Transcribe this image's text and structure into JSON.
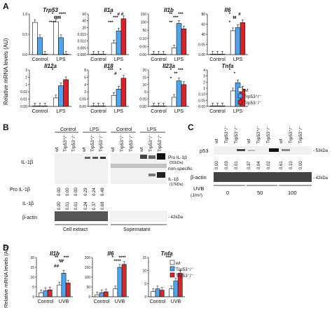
{
  "panels": {
    "A": "A",
    "B": "B",
    "C": "C",
    "D": "D"
  },
  "colors": {
    "wt": "#ffffff",
    "het": "#4da6ee",
    "ko": "#d8232a",
    "err": "#222222"
  },
  "legend_A": {
    "items": [
      {
        "label": "wt",
        "color": "#ffffff"
      },
      {
        "label": "Trp53⁺/⁻",
        "color": "#4da6ee"
      },
      {
        "label": "Trp53⁻/⁻",
        "color": "#d8232a"
      }
    ]
  },
  "legend_D": {
    "items": [
      {
        "label": "wt",
        "color": "#ffffff"
      },
      {
        "label": "Trp53⁺/⁻",
        "color": "#4da6ee"
      },
      {
        "label": "Trp53⁻/⁻",
        "color": "#d8232a"
      }
    ]
  },
  "ylabel_A": "Relative mRNA levels (AU)",
  "ylabel_D": "Relative mRNA levels (AU)",
  "panelB": {
    "groups": [
      "Control",
      "LPS",
      "Control",
      "LPS"
    ],
    "lanes": [
      "wt",
      "Trp53⁺/⁻",
      "Trp53⁻/⁻",
      "wt",
      "Trp53⁺/⁻",
      "Trp53⁻/⁻",
      "wt",
      "Trp53⁺/⁻",
      "Trp53⁻/⁻",
      "wt",
      "Trp53⁺/⁻",
      "Trp53⁻/⁻"
    ],
    "left_label": "IL-1β",
    "right_labels": [
      "Pro IL-1β",
      "(31kDa)",
      "non-specific",
      "IL-1β",
      "(17kDa)"
    ],
    "pro_label": "Pro IL-1β",
    "il_label": "IL-1β",
    "pro_values": [
      "0.00",
      "0.00",
      "0.00",
      "0.29",
      "0.24",
      "0.48"
    ],
    "il_values": [
      "0.00",
      "0.01",
      "0.01",
      "0.24",
      "0.37",
      "0.68"
    ],
    "actin_label": "β-actin",
    "actin_kda": "- 42kDa",
    "bottom": [
      "Cell extract",
      "Supernatant"
    ]
  },
  "panelC": {
    "lanes": [
      "wt",
      "Trp53⁺/⁻",
      "Trp53⁻/⁻",
      "wt",
      "Trp53⁺/⁻",
      "Trp53⁻/⁻",
      "wt",
      "Trp53⁺/⁻",
      "Trp53⁻/⁻"
    ],
    "p53_label": "p53",
    "kda_p53": "- 53kDa",
    "values": [
      "0.00",
      "0.03",
      "0.01",
      "0.37",
      "0.04",
      "0.02",
      "0.61",
      "0.10",
      "0.00"
    ],
    "actin_label": "β-actin",
    "kda_actin": "- 42kDa",
    "uvb_label": "UVB",
    "uvb_unit": "(J/m²)",
    "doses": [
      "0",
      "50",
      "100"
    ]
  },
  "chart_data": [
    {
      "type": "bar",
      "panel": "A",
      "title": "Trp53",
      "categories": [
        "Control",
        "LPS"
      ],
      "ylim": [
        0,
        1.2
      ],
      "ticks": [
        "0.0",
        "0.5",
        "1.0"
      ],
      "series": [
        {
          "name": "wt",
          "values": [
            0.95,
            0.97
          ]
        },
        {
          "name": "Trp53⁺/⁻",
          "values": [
            0.5,
            0.5
          ]
        },
        {
          "name": "Trp53⁻/⁻",
          "values": [
            0.01,
            0.01
          ]
        }
      ],
      "annotations": [
        "*",
        "****",
        "****",
        "****",
        "****"
      ]
    },
    {
      "type": "bar",
      "panel": "A",
      "title": "Il1a",
      "categories": [
        "Control",
        "LPS"
      ],
      "ylim": [
        0,
        60
      ],
      "ticks": [
        "0.000",
        "0.005",
        "0.010",
        "0.015",
        "20",
        "40",
        "60"
      ],
      "series": [
        {
          "name": "wt",
          "values": [
            0.002,
            17
          ]
        },
        {
          "name": "Trp53⁺/⁻",
          "values": [
            0.004,
            35
          ]
        },
        {
          "name": "Trp53⁻/⁻",
          "values": [
            0.008,
            53
          ]
        }
      ],
      "annotations": [
        "*",
        "***",
        "# #",
        "***"
      ]
    },
    {
      "type": "bar",
      "panel": "A",
      "title": "Il1b",
      "categories": [
        "Control",
        "LPS"
      ],
      "ylim": [
        0,
        150
      ],
      "ticks": [
        "0.00",
        "0.05",
        "0.10",
        "50",
        "100",
        "150"
      ],
      "series": [
        {
          "name": "wt",
          "values": [
            0.01,
            25
          ]
        },
        {
          "name": "Trp53⁺/⁻",
          "values": [
            0.04,
            115
          ]
        },
        {
          "name": "Trp53⁻/⁻",
          "values": [
            0.07,
            95
          ]
        }
      ],
      "annotations": [
        "**",
        "***",
        "***",
        "**"
      ]
    },
    {
      "type": "bar",
      "panel": "A",
      "title": "Il6",
      "categories": [
        "Control",
        "LPS"
      ],
      "ylim": [
        0,
        80
      ],
      "ticks": [
        "0.00",
        "0.05",
        "40",
        "60",
        "80"
      ],
      "series": [
        {
          "name": "wt",
          "values": [
            0.005,
            47
          ]
        },
        {
          "name": "Trp53⁺/⁻",
          "values": [
            0.02,
            53
          ]
        },
        {
          "name": "Trp53⁻/⁻",
          "values": [
            0.035,
            63
          ]
        }
      ],
      "annotations": [
        "*",
        "**",
        "#",
        "*",
        "**"
      ]
    },
    {
      "type": "bar",
      "panel": "A",
      "title": "Il12a",
      "categories": [
        "Control",
        "LPS"
      ],
      "ylim": [
        0,
        3
      ],
      "ticks": [
        "0.00",
        "0.01",
        "0.02",
        "1",
        "2",
        "3"
      ],
      "series": [
        {
          "name": "wt",
          "values": [
            0.001,
            0.7
          ]
        },
        {
          "name": "Trp53⁺/⁻",
          "values": [
            0.008,
            1.7
          ]
        },
        {
          "name": "Trp53⁻/⁻",
          "values": [
            0.002,
            2.2
          ]
        }
      ],
      "annotations": [
        "*"
      ]
    },
    {
      "type": "bar",
      "panel": "A",
      "title": "Il18",
      "categories": [
        "Control",
        "LPS"
      ],
      "ylim": [
        0,
        8
      ],
      "ticks": [
        "0.00",
        "0.05",
        "2",
        "4",
        "6",
        "8"
      ],
      "series": [
        {
          "name": "wt",
          "values": [
            0.002,
            2.4
          ]
        },
        {
          "name": "Trp53⁺/⁻",
          "values": [
            0.01,
            3.8
          ]
        },
        {
          "name": "Trp53⁻/⁻",
          "values": [
            0.03,
            6.2
          ]
        }
      ],
      "annotations": [
        "***",
        "#",
        "*"
      ]
    },
    {
      "type": "bar",
      "panel": "A",
      "title": "Il23a",
      "categories": [
        "Control",
        "LPS"
      ],
      "ylim": [
        0,
        20
      ],
      "ticks": [
        "0.00",
        "0.05",
        "5",
        "10",
        "15",
        "20"
      ],
      "series": [
        {
          "name": "wt",
          "values": [
            0.002,
            5
          ]
        },
        {
          "name": "Trp53⁺/⁻",
          "values": [
            0.02,
            14
          ]
        },
        {
          "name": "Trp53⁻/⁻",
          "values": [
            0.01,
            12
          ]
        }
      ],
      "annotations": [
        "*",
        "**",
        "***",
        "*"
      ]
    },
    {
      "type": "bar",
      "panel": "A",
      "title": "Tnfa",
      "categories": [
        "Control",
        "LPS"
      ],
      "ylim": [
        0,
        4
      ],
      "ticks": [
        "0.00",
        "0.05",
        "0.10",
        "1",
        "2",
        "3",
        "4"
      ],
      "series": [
        {
          "name": "wt",
          "values": [
            0.02,
            1.7
          ]
        },
        {
          "name": "Trp53⁺/⁻",
          "values": [
            0.06,
            2.6
          ]
        },
        {
          "name": "Trp53⁻/⁻",
          "values": [
            0.04,
            1.9
          ]
        }
      ],
      "annotations": [
        "*",
        "*"
      ]
    },
    {
      "type": "bar",
      "panel": "D",
      "title": "Il1b",
      "categories": [
        "Control",
        "UVB"
      ],
      "ylim": [
        0,
        20
      ],
      "ticks": [
        "0",
        "5",
        "10",
        "15",
        "20"
      ],
      "series": [
        {
          "name": "wt",
          "values": [
            2,
            6
          ]
        },
        {
          "name": "Trp53⁺/⁻",
          "values": [
            3,
            12
          ]
        },
        {
          "name": "Trp53⁻/⁻",
          "values": [
            3.5,
            7
          ]
        }
      ],
      "annotations": [
        "**",
        "***",
        "***",
        "##",
        "**"
      ]
    },
    {
      "type": "bar",
      "panel": "D",
      "title": "Il6",
      "categories": [
        "Control",
        "UVB"
      ],
      "ylim": [
        0,
        200
      ],
      "ticks": [
        "0",
        "50",
        "100",
        "150",
        "200"
      ],
      "series": [
        {
          "name": "wt",
          "values": [
            10,
            40
          ]
        },
        {
          "name": "Trp53⁺/⁻",
          "values": [
            20,
            150
          ]
        },
        {
          "name": "Trp53⁻/⁻",
          "values": [
            25,
            165
          ]
        }
      ],
      "annotations": [
        "*",
        "****",
        "****"
      ]
    },
    {
      "type": "bar",
      "panel": "D",
      "title": "Tnfa",
      "categories": [
        "Control",
        "UVB"
      ],
      "ylim": [
        0,
        15
      ],
      "ticks": [
        "0",
        "5",
        "10",
        "15"
      ],
      "series": [
        {
          "name": "wt",
          "values": [
            2,
            3
          ]
        },
        {
          "name": "Trp53⁺/⁻",
          "values": [
            3,
            6
          ]
        },
        {
          "name": "Trp53⁻/⁻",
          "values": [
            2.5,
            9
          ]
        }
      ],
      "annotations": [
        "***"
      ]
    }
  ]
}
